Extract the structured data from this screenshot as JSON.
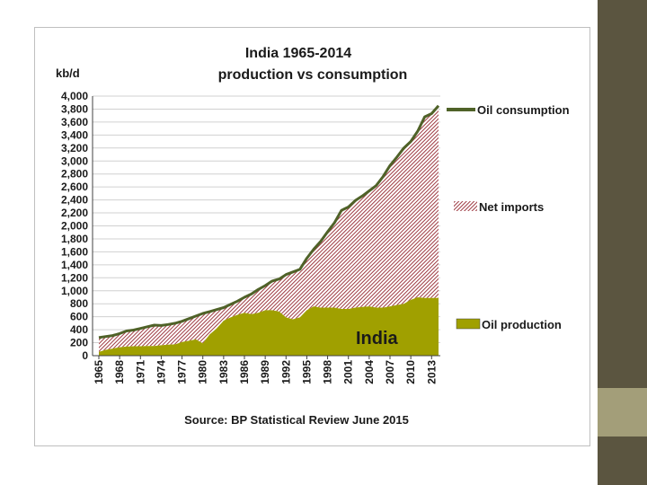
{
  "chart_data": {
    "type": "area",
    "title": "India 1965-2014",
    "subtitle": "production vs consumption",
    "ylabel": "kb/d",
    "ylim": [
      0,
      4000
    ],
    "yticks": [
      "4,000",
      "3,800",
      "3,600",
      "3,400",
      "3,200",
      "3,000",
      "2,800",
      "2,600",
      "2,400",
      "2,200",
      "2,000",
      "1,800",
      "1,600",
      "1,400",
      "1,200",
      "1,000",
      "800",
      "600",
      "400",
      "200",
      "0"
    ],
    "xticks": [
      "1965",
      "1968",
      "1971",
      "1974",
      "1977",
      "1980",
      "1983",
      "1986",
      "1989",
      "1992",
      "1995",
      "1998",
      "2001",
      "2004",
      "2007",
      "2010",
      "2013"
    ],
    "x": [
      1965,
      1966,
      1967,
      1968,
      1969,
      1970,
      1971,
      1972,
      1973,
      1974,
      1975,
      1976,
      1977,
      1978,
      1979,
      1980,
      1981,
      1982,
      1983,
      1984,
      1985,
      1986,
      1987,
      1988,
      1989,
      1990,
      1991,
      1992,
      1993,
      1994,
      1995,
      1996,
      1997,
      1998,
      1999,
      2000,
      2001,
      2002,
      2003,
      2004,
      2005,
      2006,
      2007,
      2008,
      2009,
      2010,
      2011,
      2012,
      2013,
      2014
    ],
    "series": [
      {
        "name": "Oil consumption",
        "values": [
          280,
          295,
          310,
          340,
          380,
          395,
          420,
          445,
          470,
          465,
          480,
          500,
          530,
          570,
          610,
          650,
          680,
          710,
          740,
          790,
          840,
          900,
          950,
          1020,
          1080,
          1150,
          1180,
          1250,
          1290,
          1330,
          1500,
          1640,
          1760,
          1910,
          2050,
          2240,
          2290,
          2390,
          2460,
          2540,
          2620,
          2760,
          2930,
          3060,
          3200,
          3300,
          3460,
          3680,
          3730,
          3850
        ]
      },
      {
        "name": "Oil production",
        "values": [
          60,
          90,
          110,
          130,
          140,
          145,
          145,
          150,
          150,
          160,
          170,
          175,
          210,
          230,
          250,
          190,
          330,
          420,
          540,
          590,
          630,
          660,
          640,
          660,
          700,
          700,
          680,
          590,
          560,
          590,
          700,
          760,
          740,
          740,
          740,
          720,
          720,
          740,
          750,
          760,
          740,
          740,
          760,
          780,
          800,
          860,
          900,
          890,
          890,
          890
        ]
      },
      {
        "name": "Net imports",
        "values": [
          220,
          205,
          200,
          210,
          240,
          250,
          275,
          295,
          320,
          305,
          310,
          325,
          320,
          340,
          360,
          460,
          350,
          290,
          200,
          200,
          210,
          240,
          310,
          360,
          380,
          450,
          500,
          660,
          730,
          740,
          800,
          880,
          1020,
          1170,
          1310,
          1520,
          1570,
          1650,
          1710,
          1780,
          1880,
          2020,
          2170,
          2280,
          2400,
          2440,
          2560,
          2790,
          2840,
          2960
        ]
      }
    ],
    "colors": {
      "consumption": "#4f6228",
      "imports_stripe": "#9e3b43",
      "production": "#a0a000"
    },
    "annotation": "India",
    "source": "Source: BP Statistical Review June 2015"
  }
}
